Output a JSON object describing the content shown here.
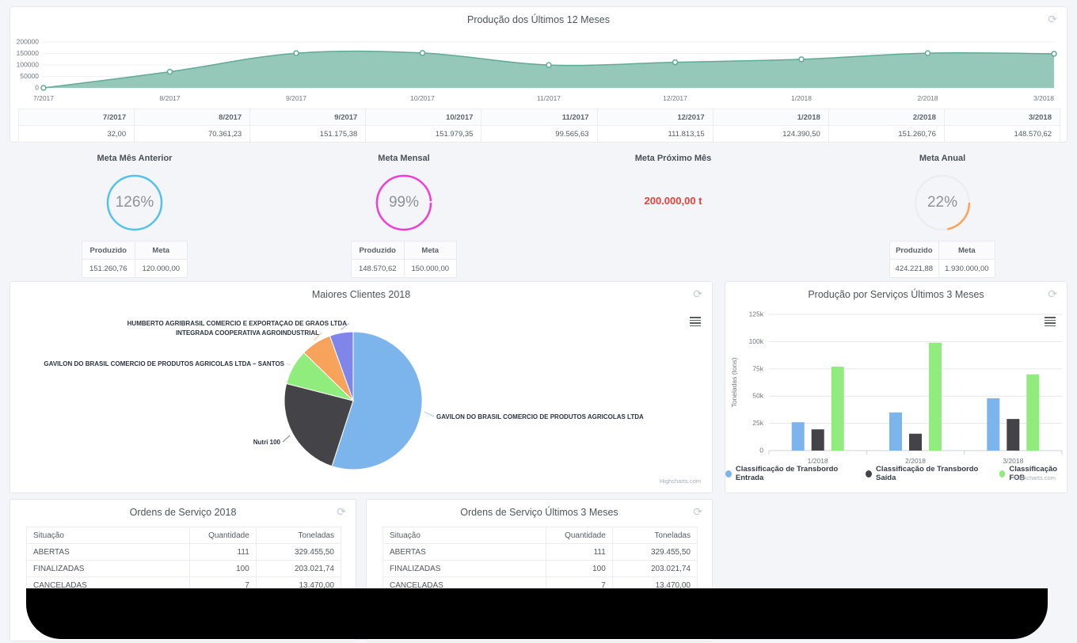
{
  "icons": {
    "refresh": "⟳"
  },
  "production_panel": {
    "title": "Produção dos Últimos 12 Meses",
    "months": [
      "7/2017",
      "8/2017",
      "9/2017",
      "10/2017",
      "11/2017",
      "12/2017",
      "1/2018",
      "2/2018",
      "3/2018"
    ],
    "values": [
      32,
      70361.23,
      151175.38,
      151979.35,
      99565.63,
      111813.15,
      124390.5,
      151260.76,
      148570.62
    ],
    "values_display": [
      "32,00",
      "70.361,23",
      "151.175,38",
      "151.979,35",
      "99.565,63",
      "111.813,15",
      "124.390,50",
      "151.260,76",
      "148.570,62"
    ],
    "y_ticks": [
      0,
      50000,
      100000,
      150000,
      200000
    ],
    "y_tick_labels": [
      "0",
      "50000",
      "100000",
      "150000",
      "200000"
    ],
    "area_color": "#8ac2b0",
    "line_color": "#61aa94"
  },
  "gauges": [
    {
      "title": "Meta Mês Anterior",
      "percent": 126,
      "percent_label": "126%",
      "color": "#55c3e8",
      "produced_label": "Produzido",
      "target_label": "Meta",
      "produced": "151.260,76",
      "target": "120.000,00"
    },
    {
      "title": "Meta Mensal",
      "percent": 99,
      "percent_label": "99%",
      "color": "#ee3fd4",
      "produced_label": "Produzido",
      "target_label": "Meta",
      "produced": "148.570,62",
      "target": "150.000,00"
    },
    {
      "title": "Meta Próximo Mês",
      "value": "200.000,00 t",
      "color": "#e8413c"
    },
    {
      "title": "Meta Anual",
      "percent": 22,
      "percent_label": "22%",
      "color": "#f7a35c",
      "produced_label": "Produzido",
      "target_label": "Meta",
      "produced": "424.221,88",
      "target": "1.930.000,00"
    }
  ],
  "pie_panel": {
    "title": "Maiores Clientes 2018",
    "watermark": "Highcharts.com",
    "slices": [
      {
        "label": "GAVILON DO BRASIL COMERCIO DE PRODUTOS AGRICOLAS LTDA",
        "share": 55,
        "color": "#7cb5ec"
      },
      {
        "label": "Nutri 100",
        "share": 24,
        "color": "#434348"
      },
      {
        "label": "GAVILON DO BRASIL COMERCIO DE PRODUTOS AGRICOLAS LTDA – SANTOS",
        "share": 8.3,
        "color": "#90ed7d"
      },
      {
        "label": "INTEGRADA COOPERATIVA AGROINDUSTRIAL",
        "share": 7.2,
        "color": "#f7a35c"
      },
      {
        "label": "HUMBERTO AGRIBRASIL COMERCIO E EXPORTAÇAO DE GRAOS LTDA",
        "share": 5.5,
        "color": "#8085e9"
      }
    ]
  },
  "bar_panel": {
    "title": "Produção por Serviços Últimos 3 Meses",
    "ylabel": "Toneladas (tons)",
    "watermark": "Highcharts.com",
    "categories": [
      "1/2018",
      "2/2018",
      "3/2018"
    ],
    "y_ticks": [
      0,
      25000,
      50000,
      75000,
      100000,
      125000
    ],
    "y_tick_labels": [
      "0",
      "25k",
      "50k",
      "75k",
      "100k",
      "125k"
    ],
    "ymax": 125000,
    "series": [
      {
        "name": "Classificação de Transbordo Entrada",
        "color": "#7cb5ec",
        "values": [
          26000,
          35000,
          48000
        ]
      },
      {
        "name": "Classificação de Transbordo Saída",
        "color": "#434348",
        "values": [
          19500,
          15500,
          29000
        ]
      },
      {
        "name": "Classificação FOB",
        "color": "#90ed7d",
        "values": [
          77000,
          99000,
          70000
        ]
      }
    ]
  },
  "orders_2018": {
    "title": "Ordens de Serviço 2018",
    "columns": [
      "Situação",
      "Quantidade",
      "Toneladas"
    ],
    "rows": [
      [
        "ABERTAS",
        "111",
        "329.455,50"
      ],
      [
        "FINALIZADAS",
        "100",
        "203.021,74"
      ],
      [
        "CANCELADAS",
        "7",
        "13.470,00"
      ]
    ]
  },
  "orders_last3": {
    "title": "Ordens de Serviço Últimos 3 Meses",
    "columns": [
      "Situação",
      "Quantidade",
      "Toneladas"
    ],
    "rows": [
      [
        "ABERTAS",
        "111",
        "329.455,50"
      ],
      [
        "FINALIZADAS",
        "100",
        "203.021,74"
      ],
      [
        "CANCELADAS",
        "7",
        "13.470,00"
      ]
    ]
  },
  "chart_data": [
    {
      "type": "area",
      "title": "Produção dos Últimos 12 Meses",
      "x": [
        "7/2017",
        "8/2017",
        "9/2017",
        "10/2017",
        "11/2017",
        "12/2017",
        "1/2018",
        "2/2018",
        "3/2018"
      ],
      "values": [
        32,
        70361.23,
        151175.38,
        151979.35,
        99565.63,
        111813.15,
        124390.5,
        151260.76,
        148570.62
      ],
      "xlabel": "",
      "ylabel": "",
      "ylim": [
        0,
        200000
      ],
      "grid": true,
      "legend": false,
      "marker": "circle"
    },
    {
      "type": "pie",
      "title": "Maiores Clientes 2018",
      "labels": [
        "GAVILON DO BRASIL COMERCIO DE PRODUTOS AGRICOLAS LTDA",
        "Nutri 100",
        "GAVILON DO BRASIL COMERCIO DE PRODUTOS AGRICOLAS LTDA – SANTOS",
        "INTEGRADA COOPERATIVA AGROINDUSTRIAL",
        "HUMBERTO AGRIBRASIL COMERCIO E EXPORTAÇAO DE GRAOS LTDA"
      ],
      "values_share_pct": [
        55,
        24,
        8.3,
        7.2,
        5.5
      ],
      "note": "no numeric labels shown on chart; shares estimated from slice angles"
    },
    {
      "type": "bar",
      "title": "Produção por Serviços Últimos 3 Meses",
      "categories": [
        "1/2018",
        "2/2018",
        "3/2018"
      ],
      "series": [
        {
          "name": "Classificação de Transbordo Entrada",
          "values": [
            26000,
            35000,
            48000
          ]
        },
        {
          "name": "Classificação de Transbordo Saída",
          "values": [
            19500,
            15500,
            29000
          ]
        },
        {
          "name": "Classificação FOB",
          "values": [
            77000,
            99000,
            70000
          ]
        }
      ],
      "xlabel": "",
      "ylabel": "Toneladas (tons)",
      "ylim": [
        0,
        125000
      ],
      "grid": true,
      "legend_position": "bottom",
      "note": "values estimated from bar heights vs gridlines"
    },
    {
      "type": "gauge",
      "title": "Meta Mês Anterior",
      "percent": 126,
      "produzido": "151.260,76",
      "meta": "120.000,00"
    },
    {
      "type": "gauge",
      "title": "Meta Mensal",
      "percent": 99,
      "produzido": "148.570,62",
      "meta": "150.000,00"
    },
    {
      "type": "gauge",
      "title": "Meta Anual",
      "percent": 22,
      "produzido": "424.221,88",
      "meta": "1.930.000,00"
    },
    {
      "type": "table",
      "title": "Ordens de Serviço 2018",
      "columns": [
        "Situação",
        "Quantidade",
        "Toneladas"
      ],
      "rows": [
        [
          "ABERTAS",
          111,
          "329.455,50"
        ],
        [
          "FINALIZADAS",
          100,
          "203.021,74"
        ],
        [
          "CANCELADAS",
          7,
          "13.470,00"
        ]
      ]
    },
    {
      "type": "table",
      "title": "Ordens de Serviço Últimos 3 Meses",
      "columns": [
        "Situação",
        "Quantidade",
        "Toneladas"
      ],
      "rows": [
        [
          "ABERTAS",
          111,
          "329.455,50"
        ],
        [
          "FINALIZADAS",
          100,
          "203.021,74"
        ],
        [
          "CANCELADAS",
          7,
          "13.470,00"
        ]
      ]
    }
  ]
}
